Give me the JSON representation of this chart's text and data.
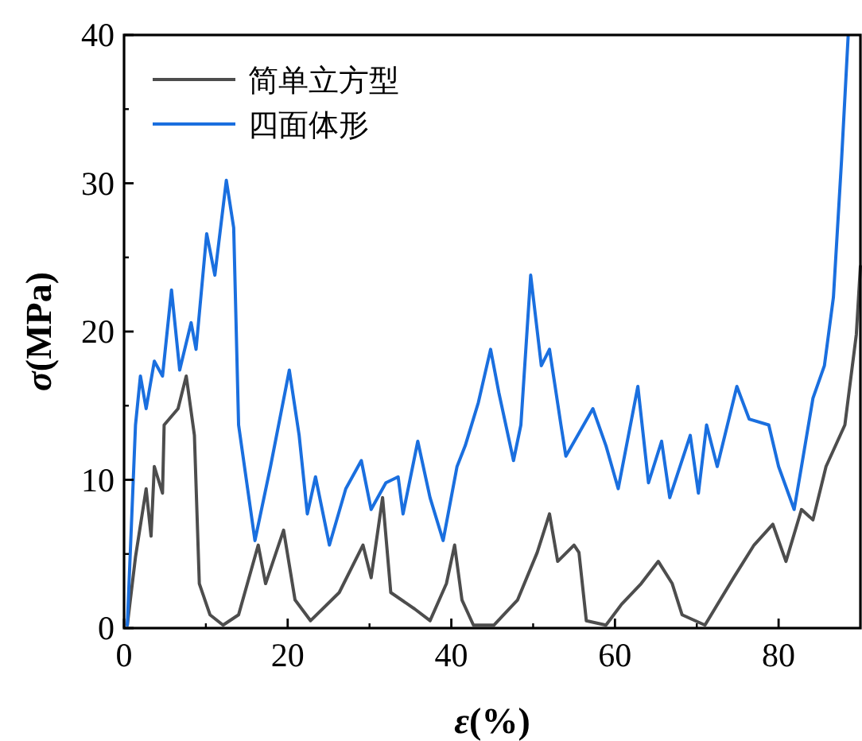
{
  "chart_data": {
    "type": "line",
    "xlabel": "*ε*(%)",
    "ylabel": "*σ*(MPa)",
    "xlim": [
      0,
      90
    ],
    "ylim": [
      0,
      40
    ],
    "xticks": [
      0,
      20,
      40,
      60,
      80
    ],
    "yticks": [
      0,
      10,
      20,
      30,
      40
    ],
    "legend": "top left",
    "grid": false,
    "line_style": "solid",
    "marker": "none",
    "series": [
      {
        "name": "简单立方型",
        "color": "#4d4d4d",
        "x": [
          0.4,
          1.4,
          2.7,
          3.3,
          3.7,
          4.7,
          4.9,
          6.6,
          7.6,
          8.6,
          9.2,
          10.5,
          12.1,
          14,
          16.4,
          17.3,
          19.5,
          20.9,
          22.8,
          26.3,
          29.2,
          30.2,
          31.6,
          32.6,
          35.5,
          37.4,
          39.4,
          40.4,
          41.3,
          42.7,
          45.2,
          48.1,
          50.5,
          52,
          53,
          55,
          55.6,
          56.5,
          58.9,
          60.8,
          63.2,
          65.3,
          67,
          68.2,
          71,
          74.5,
          77,
          79.3,
          80.9,
          82.8,
          84.2,
          85.8,
          88.1,
          89.5,
          90
        ],
        "values": [
          0.2,
          4.8,
          9.4,
          6.2,
          10.9,
          9.1,
          13.7,
          14.8,
          17,
          13,
          3,
          0.9,
          0.2,
          0.9,
          5.6,
          3,
          6.6,
          1.9,
          0.5,
          2.4,
          5.6,
          3.4,
          8.8,
          2.4,
          1.3,
          0.5,
          3,
          5.6,
          1.9,
          0.2,
          0.2,
          1.9,
          5.1,
          7.7,
          4.5,
          5.6,
          5.1,
          0.5,
          0.2,
          1.6,
          3,
          4.5,
          3,
          0.9,
          0.2,
          3.4,
          5.6,
          7,
          4.5,
          8,
          7.3,
          10.9,
          13.7,
          19.8,
          24.4
        ]
      },
      {
        "name": "四面体形",
        "color": "#1a6fdf",
        "x": [
          0.4,
          1.4,
          2,
          2.7,
          3.7,
          4.7,
          5.8,
          6.8,
          8.2,
          8.8,
          10.1,
          11.1,
          12.5,
          13.4,
          14,
          16,
          17.9,
          20.2,
          21.4,
          22.4,
          23.4,
          25.1,
          27.1,
          29,
          30.2,
          32,
          33.5,
          34.1,
          35.9,
          37.4,
          39,
          40.7,
          41.7,
          43.3,
          44.8,
          45.8,
          47.6,
          48.5,
          49.7,
          51,
          52,
          53.4,
          54,
          57.3,
          58.9,
          60.4,
          62.8,
          64.1,
          65.7,
          66.7,
          69.2,
          70.2,
          71.2,
          72.5,
          74.9,
          76.4,
          78.8,
          80,
          81.9,
          82.8,
          84.2,
          85.6,
          86.7,
          87.7,
          88.5
        ],
        "values": [
          0.2,
          13.7,
          17,
          14.8,
          18,
          17,
          22.8,
          17.4,
          20.6,
          18.8,
          26.6,
          23.8,
          30.2,
          27,
          13.7,
          5.9,
          10.9,
          17.4,
          13,
          7.7,
          10.2,
          5.6,
          9.4,
          11.3,
          8,
          9.8,
          10.2,
          7.7,
          12.6,
          8.8,
          5.9,
          10.9,
          12.3,
          15.2,
          18.8,
          15.9,
          11.3,
          13.7,
          23.8,
          17.7,
          18.8,
          13.7,
          11.6,
          14.8,
          12.3,
          9.4,
          16.3,
          9.8,
          12.6,
          8.8,
          13,
          9.1,
          13.7,
          10.9,
          16.3,
          14.1,
          13.7,
          10.9,
          8,
          10.9,
          15.5,
          17.7,
          22.3,
          31.6,
          39.9
        ]
      }
    ]
  }
}
